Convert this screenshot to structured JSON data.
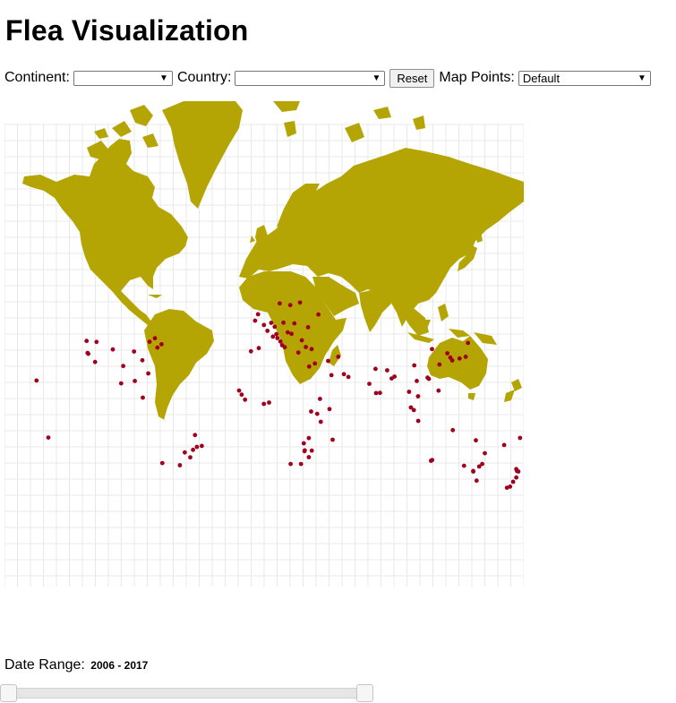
{
  "title": "Flea Visualization",
  "controls": {
    "continent_label": "Continent:",
    "continent_value": "",
    "country_label": "Country:",
    "country_value": "",
    "reset_label": "Reset",
    "map_points_label": "Map Points:",
    "map_points_value": "Default"
  },
  "map": {
    "projection": "mercator",
    "land_color": "#b5a504",
    "point_color": "#a0001e",
    "grid": true,
    "points": [
      [
        -122.4,
        37.8
      ],
      [
        -121.9,
        37.3
      ],
      [
        -123.1,
        44.1
      ],
      [
        -117.2,
        32.7
      ],
      [
        -116.2,
        43.6
      ],
      [
        -104.9,
        39.7
      ],
      [
        -90.2,
        38.6
      ],
      [
        -84.4,
        33.7
      ],
      [
        -80.3,
        25.8
      ],
      [
        -97.7,
        30.3
      ],
      [
        -99.1,
        19.4
      ],
      [
        -89.6,
        21.0
      ],
      [
        -84.1,
        9.9
      ],
      [
        -157.8,
        21.3
      ],
      [
        -75.7,
        45.4
      ],
      [
        -74.0,
        40.7
      ],
      [
        -71.1,
        42.4
      ],
      [
        -79.4,
        43.7
      ],
      [
        -47.9,
        -15.8
      ],
      [
        -46.6,
        -23.5
      ],
      [
        -49.3,
        -25.4
      ],
      [
        -51.2,
        -30.0
      ],
      [
        -58.4,
        -34.6
      ],
      [
        -70.6,
        -33.4
      ],
      [
        -55.0,
        -27.0
      ],
      [
        -43.2,
        -22.9
      ],
      [
        -0.1,
        51.5
      ],
      [
        -3.7,
        40.4
      ],
      [
        -9.1,
        38.7
      ],
      [
        2.3,
        48.9
      ],
      [
        4.9,
        52.4
      ],
      [
        8.5,
        47.4
      ],
      [
        13.4,
        52.5
      ],
      [
        16.4,
        48.2
      ],
      [
        12.5,
        41.9
      ],
      [
        14.3,
        40.9
      ],
      [
        18.1,
        59.3
      ],
      [
        10.8,
        59.9
      ],
      [
        24.9,
        60.2
      ],
      [
        21.0,
        52.2
      ],
      [
        19.0,
        47.5
      ],
      [
        26.1,
        44.4
      ],
      [
        23.7,
        38.0
      ],
      [
        28.9,
        41.0
      ],
      [
        32.9,
        39.9
      ],
      [
        37.6,
        55.8
      ],
      [
        30.5,
        50.5
      ],
      [
        9.2,
        45.5
      ],
      [
        11.3,
        43.8
      ],
      [
        7.3,
        50.7
      ],
      [
        6.1,
        46.2
      ],
      [
        -6.3,
        53.3
      ],
      [
        -4.2,
        55.9
      ],
      [
        -17.4,
        14.7
      ],
      [
        -15.6,
        11.9
      ],
      [
        -13.2,
        8.5
      ],
      [
        -0.2,
        5.6
      ],
      [
        3.4,
        6.5
      ],
      [
        36.8,
        -1.3
      ],
      [
        39.3,
        -6.8
      ],
      [
        32.6,
        0.3
      ],
      [
        38.7,
        9.0
      ],
      [
        45.3,
        2.0
      ],
      [
        31.0,
        -17.8
      ],
      [
        28.0,
        -26.2
      ],
      [
        28.2,
        -25.7
      ],
      [
        31.0,
        -29.9
      ],
      [
        25.6,
        -33.9
      ],
      [
        18.4,
        -33.9
      ],
      [
        33.0,
        -25.9
      ],
      [
        27.5,
        -21.2
      ],
      [
        47.5,
        -18.9
      ],
      [
        35.2,
        31.8
      ],
      [
        31.2,
        30.0
      ],
      [
        44.4,
        33.3
      ],
      [
        51.4,
        35.7
      ],
      [
        46.7,
        24.7
      ],
      [
        58.4,
        23.6
      ],
      [
        55.3,
        25.3
      ],
      [
        77.2,
        28.6
      ],
      [
        72.9,
        19.1
      ],
      [
        80.3,
        13.1
      ],
      [
        77.6,
        13.0
      ],
      [
        88.4,
        22.6
      ],
      [
        85.3,
        27.7
      ],
      [
        90.4,
        23.8
      ],
      [
        100.5,
        13.8
      ],
      [
        106.7,
        10.8
      ],
      [
        105.8,
        21.0
      ],
      [
        101.7,
        3.1
      ],
      [
        103.8,
        1.3
      ],
      [
        106.8,
        -6.2
      ],
      [
        116.4,
        39.9
      ],
      [
        121.5,
        31.2
      ],
      [
        114.2,
        22.3
      ],
      [
        113.3,
        23.1
      ],
      [
        104.1,
        30.7
      ],
      [
        120.9,
        14.6
      ],
      [
        127.0,
        37.6
      ],
      [
        129.1,
        35.2
      ],
      [
        139.7,
        35.7
      ],
      [
        135.5,
        34.7
      ],
      [
        141.3,
        43.1
      ],
      [
        130.4,
        33.6
      ],
      [
        115.9,
        -31.9
      ],
      [
        115.7,
        -32.0
      ],
      [
        116.5,
        -31.6
      ],
      [
        138.6,
        -34.9
      ],
      [
        144.9,
        -37.8
      ],
      [
        145.0,
        -38.1
      ],
      [
        151.2,
        -33.9
      ],
      [
        153.0,
        -27.5
      ],
      [
        147.3,
        -42.9
      ],
      [
        149.1,
        -35.3
      ],
      [
        146.8,
        -19.3
      ],
      [
        130.8,
        -12.5
      ],
      [
        174.8,
        -36.8
      ],
      [
        175.3,
        -37.8
      ],
      [
        176.2,
        -38.1
      ],
      [
        174.8,
        -41.3
      ],
      [
        172.6,
        -43.5
      ],
      [
        170.5,
        -45.9
      ],
      [
        168.3,
        -46.4
      ],
      [
        177.4,
        -17.7
      ],
      [
        -149.6,
        -17.5
      ],
      [
        166.4,
        -22.3
      ]
    ]
  },
  "date_range": {
    "label": "Date Range:",
    "value": "2006 - 2017",
    "start": 2006,
    "end": 2017,
    "selected_start": 2006,
    "selected_end": 2017
  }
}
